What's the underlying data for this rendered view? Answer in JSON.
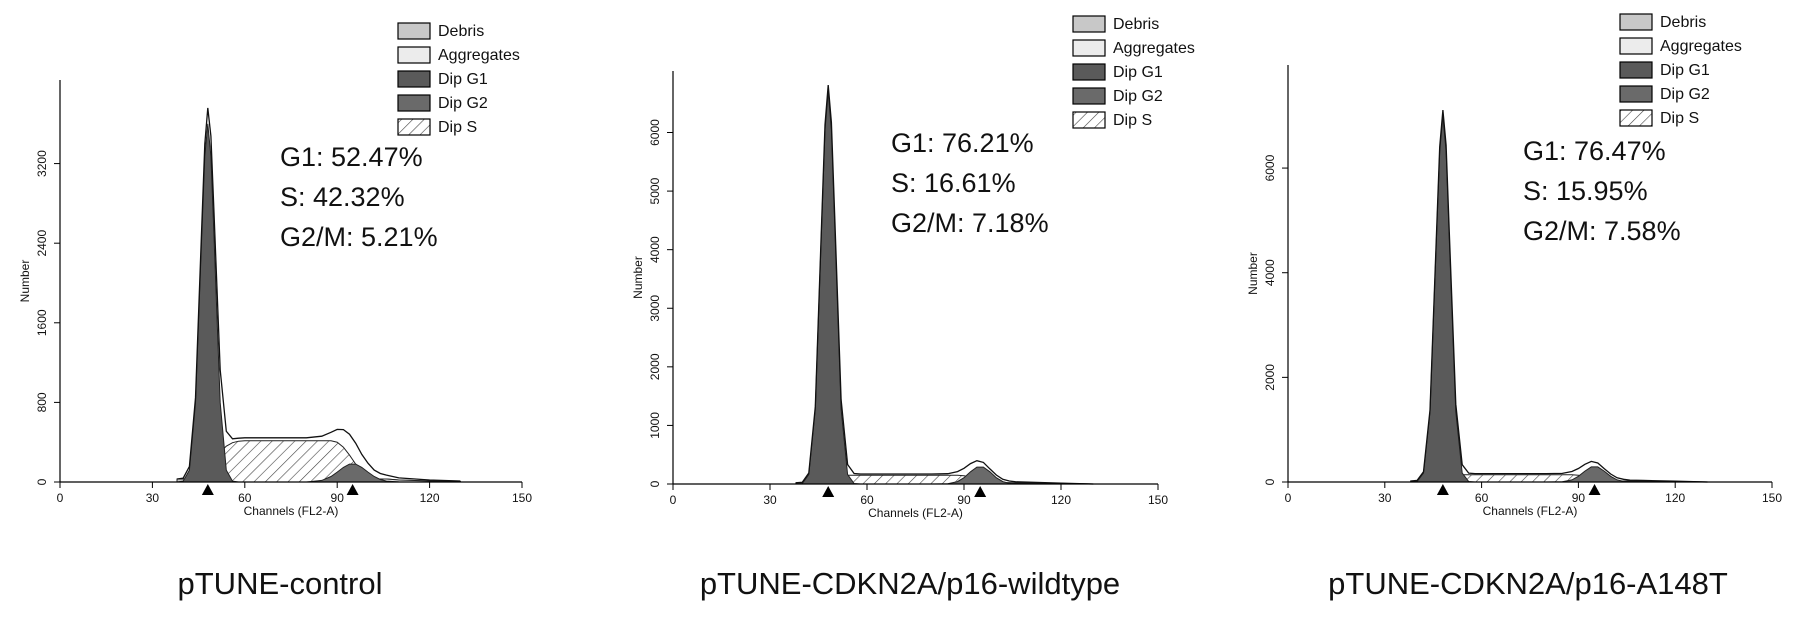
{
  "chart_data": [
    {
      "type": "area",
      "title": "pTUNE-control",
      "xlabel": "Channels (FL2-A)",
      "ylabel": "Number",
      "annotations": [
        "G1: 52.47%",
        "S: 42.32%",
        "G2/M: 5.21%"
      ],
      "xlim": [
        0,
        150
      ],
      "xticks": [
        0,
        30,
        60,
        90,
        120,
        150
      ],
      "ylim": [
        0,
        4040
      ],
      "yticks": [
        0,
        800,
        1600,
        2400,
        3200
      ],
      "markers": [
        48,
        95
      ],
      "x": [
        38,
        40,
        42,
        44,
        46,
        47,
        48,
        49,
        50,
        52,
        54,
        56,
        58,
        60,
        65,
        70,
        75,
        80,
        85,
        88,
        90,
        92,
        94,
        96,
        98,
        100,
        102,
        104,
        106,
        110,
        120,
        130
      ],
      "series": [
        {
          "name": "Debris",
          "color": "#c8c8c8",
          "values": [
            30,
            30,
            30,
            30,
            30,
            30,
            30,
            30,
            30,
            30,
            30,
            30,
            30,
            30,
            30,
            30,
            30,
            30,
            30,
            30,
            30,
            30,
            30,
            30,
            30,
            30,
            30,
            30,
            30,
            20,
            10,
            5
          ]
        },
        {
          "name": "Aggregates",
          "color": "#ececec",
          "values": [
            0,
            0,
            0,
            0,
            0,
            0,
            0,
            0,
            0,
            0,
            0,
            0,
            0,
            0,
            0,
            0,
            0,
            0,
            0,
            0,
            0,
            0,
            0,
            0,
            0,
            20,
            25,
            30,
            30,
            20,
            10,
            5
          ]
        },
        {
          "name": "Dip G1",
          "color": "#5a5a5a",
          "values": [
            0,
            9,
            120,
            797,
            2466,
            3276,
            3600,
            3276,
            2466,
            797,
            120,
            9,
            0,
            0,
            0,
            0,
            0,
            0,
            0,
            0,
            0,
            0,
            0,
            0,
            0,
            0,
            0,
            0,
            0,
            0,
            0,
            0
          ]
        },
        {
          "name": "Dip G2",
          "color": "#6a6a6a",
          "values": [
            0,
            0,
            0,
            0,
            0,
            0,
            0,
            0,
            0,
            0,
            0,
            0,
            0,
            0,
            0,
            0,
            0,
            0,
            16,
            55,
            99,
            147,
            180,
            180,
            147,
            99,
            55,
            25,
            9,
            1,
            0,
            0
          ]
        },
        {
          "name": "Dip S",
          "color": "#ffffff",
          "pattern": "hatch",
          "values": [
            0,
            0,
            5,
            20,
            60,
            90,
            130,
            170,
            210,
            300,
            360,
            395,
            410,
            414,
            414,
            414,
            414,
            414,
            414,
            414,
            400,
            350,
            270,
            180,
            100,
            40,
            10,
            0,
            0,
            0,
            0,
            0
          ]
        }
      ]
    },
    {
      "type": "area",
      "title": "pTUNE-CDKN2A/p16-wildtype",
      "xlabel": "Channels (FL2-A)",
      "ylabel": "Number",
      "annotations": [
        "G1: 76.21%",
        "S: 16.61%",
        "G2/M: 7.18%"
      ],
      "xlim": [
        0,
        150
      ],
      "xticks": [
        0,
        30,
        60,
        90,
        120,
        150
      ],
      "ylim": [
        0,
        7050
      ],
      "yticks": [
        0,
        1000,
        2000,
        3000,
        4000,
        5000,
        6000
      ],
      "markers": [
        48,
        95
      ],
      "x": [
        38,
        40,
        42,
        44,
        46,
        47,
        48,
        49,
        50,
        52,
        54,
        56,
        58,
        60,
        65,
        70,
        75,
        80,
        85,
        88,
        90,
        92,
        94,
        96,
        98,
        100,
        102,
        104,
        106,
        110,
        120,
        130
      ],
      "series": [
        {
          "name": "Debris",
          "color": "#c8c8c8",
          "values": [
            20,
            20,
            20,
            20,
            20,
            20,
            20,
            20,
            20,
            20,
            20,
            20,
            20,
            20,
            20,
            20,
            20,
            20,
            20,
            20,
            20,
            20,
            20,
            20,
            20,
            20,
            20,
            20,
            20,
            20,
            10,
            0
          ]
        },
        {
          "name": "Aggregates",
          "color": "#ececec",
          "values": [
            0,
            0,
            0,
            0,
            0,
            0,
            0,
            0,
            0,
            0,
            0,
            0,
            0,
            0,
            0,
            0,
            0,
            0,
            0,
            0,
            0,
            0,
            0,
            0,
            0,
            15,
            20,
            20,
            15,
            10,
            5,
            0
          ]
        },
        {
          "name": "Dip G1",
          "color": "#5a5a5a",
          "values": [
            0,
            9,
            163,
            1280,
            4435,
            6043,
            6700,
            6043,
            4435,
            1280,
            163,
            9,
            0,
            0,
            0,
            0,
            0,
            0,
            0,
            0,
            0,
            0,
            0,
            0,
            0,
            0,
            0,
            0,
            0,
            0,
            0,
            0
          ]
        },
        {
          "name": "Dip G2",
          "color": "#6a6a6a",
          "values": [
            0,
            0,
            0,
            0,
            0,
            0,
            0,
            0,
            0,
            0,
            0,
            0,
            0,
            0,
            0,
            0,
            0,
            0,
            5,
            41,
            108,
            208,
            288,
            288,
            208,
            108,
            41,
            11,
            2,
            0,
            0,
            0
          ]
        },
        {
          "name": "Dip S",
          "color": "#ffffff",
          "pattern": "hatch",
          "values": [
            0,
            0,
            5,
            20,
            50,
            70,
            90,
            110,
            125,
            140,
            150,
            150,
            150,
            150,
            150,
            150,
            150,
            150,
            150,
            150,
            140,
            120,
            90,
            60,
            30,
            10,
            0,
            0,
            0,
            0,
            0,
            0
          ]
        }
      ]
    },
    {
      "type": "area",
      "title": "pTUNE-CDKN2A/p16-A148T",
      "xlabel": "Channels (FL2-A)",
      "ylabel": "Number",
      "annotations": [
        "G1: 76.47%",
        "S: 15.95%",
        "G2/M: 7.58%"
      ],
      "xlim": [
        0,
        150
      ],
      "xticks": [
        0,
        30,
        60,
        90,
        120,
        150
      ],
      "ylim": [
        0,
        7970
      ],
      "yticks": [
        0,
        2000,
        4000,
        6000
      ],
      "markers": [
        48,
        95
      ],
      "x": [
        38,
        40,
        42,
        44,
        46,
        47,
        48,
        49,
        50,
        52,
        54,
        56,
        58,
        60,
        65,
        70,
        75,
        80,
        85,
        88,
        90,
        92,
        94,
        96,
        98,
        100,
        102,
        104,
        106,
        110,
        120,
        130
      ],
      "series": [
        {
          "name": "Debris",
          "color": "#c8c8c8",
          "values": [
            20,
            20,
            20,
            20,
            20,
            20,
            20,
            20,
            20,
            20,
            20,
            20,
            20,
            20,
            20,
            20,
            20,
            20,
            20,
            20,
            20,
            20,
            20,
            20,
            20,
            20,
            20,
            20,
            20,
            20,
            10,
            0
          ]
        },
        {
          "name": "Aggregates",
          "color": "#ececec",
          "values": [
            0,
            0,
            0,
            0,
            0,
            0,
            0,
            0,
            0,
            0,
            0,
            0,
            0,
            0,
            0,
            0,
            0,
            0,
            0,
            0,
            0,
            0,
            0,
            0,
            0,
            15,
            20,
            20,
            15,
            10,
            5,
            0
          ]
        },
        {
          "name": "Dip G1",
          "color": "#5a5a5a",
          "values": [
            0,
            10,
            171,
            1337,
            4634,
            6314,
            7000,
            6314,
            4634,
            1337,
            171,
            10,
            0,
            0,
            0,
            0,
            0,
            0,
            0,
            0,
            0,
            0,
            0,
            0,
            0,
            0,
            0,
            0,
            0,
            0,
            0,
            0
          ]
        },
        {
          "name": "Dip G2",
          "color": "#6a6a6a",
          "values": [
            0,
            0,
            0,
            0,
            0,
            0,
            0,
            0,
            0,
            0,
            0,
            0,
            0,
            0,
            0,
            0,
            0,
            0,
            5,
            41,
            108,
            208,
            288,
            288,
            208,
            108,
            41,
            11,
            2,
            0,
            0,
            0
          ]
        },
        {
          "name": "Dip S",
          "color": "#ffffff",
          "pattern": "hatch",
          "values": [
            0,
            0,
            5,
            20,
            50,
            70,
            90,
            105,
            120,
            130,
            140,
            140,
            140,
            140,
            140,
            140,
            140,
            140,
            140,
            140,
            130,
            110,
            85,
            55,
            28,
            10,
            0,
            0,
            0,
            0,
            0,
            0
          ]
        }
      ]
    }
  ]
}
